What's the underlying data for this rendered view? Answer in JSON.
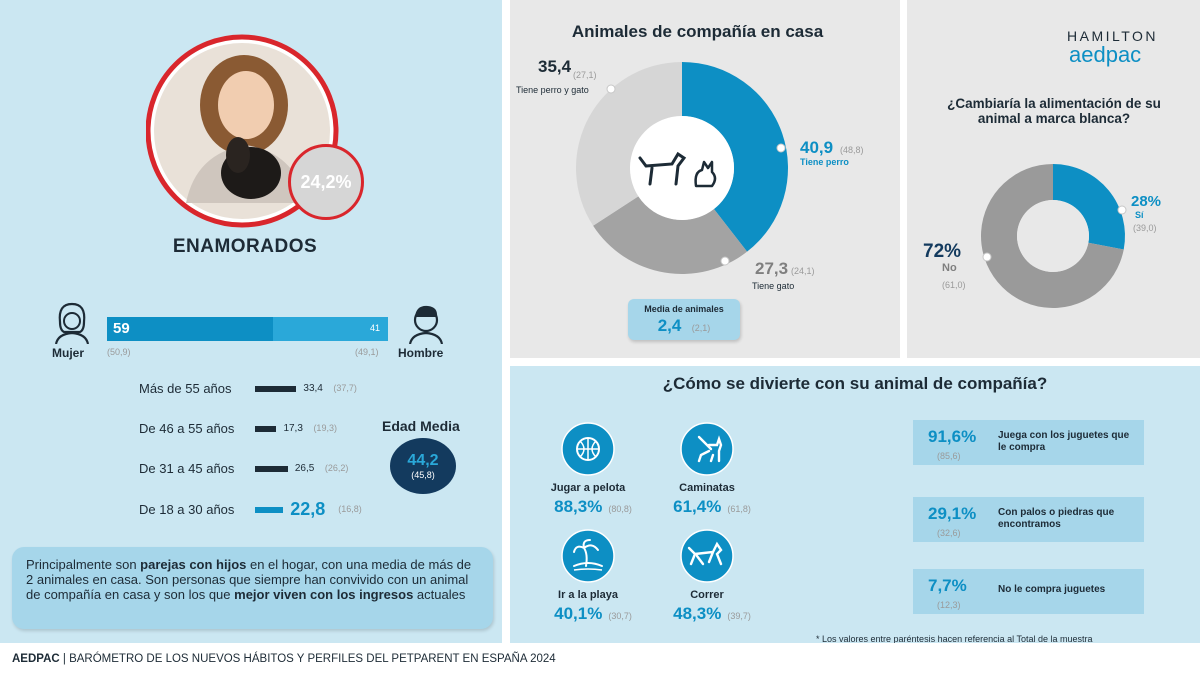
{
  "colors": {
    "blue": "#0d8fc4",
    "light_blue": "#2aa8d9",
    "dark": "#1d2b36",
    "navy": "#133a5e",
    "gray": "#9a9a9a",
    "mid_gray": "#a3a3a3",
    "light_gray": "#d6d6d6",
    "panel_blue": "#cbe7f2",
    "panel_gray": "#e8e8e8",
    "red": "#d9262c"
  },
  "profile": {
    "name": "ENAMORADOS",
    "share": "24,2%"
  },
  "gender": {
    "female_label": "Mujer",
    "male_label": "Hombre",
    "female_value": "59",
    "male_value": "41",
    "female_total": "(50,9)",
    "male_total": "(49,1)"
  },
  "age": {
    "title": "Edad Media",
    "mean": "44,2",
    "mean_total": "(45,8)",
    "groups": [
      {
        "label": "Más de 55 años",
        "value": 33.4,
        "value_text": "33,4",
        "total": "(37,7)"
      },
      {
        "label": "De 46 a 55 años",
        "value": 17.3,
        "value_text": "17,3",
        "total": "(19,3)"
      },
      {
        "label": "De 31 a 45 años",
        "value": 26.5,
        "value_text": "26,5",
        "total": "(26,2)"
      },
      {
        "label": "De 18 a 30 años",
        "value": 22.8,
        "value_text": "22,8",
        "total": "(16,8)"
      }
    ]
  },
  "summary": {
    "t1": "Principalmente son ",
    "b1": "parejas con hijos",
    "t2": " en el hogar, con una media de más de 2 animales en casa. Son personas que siempre han convivido con un animal de compañía en casa  y son los que ",
    "b2": "mejor viven con los ingresos",
    "t3": " actuales"
  },
  "pets": {
    "title": "Animales de compañía en casa",
    "avg_label": "Media de animales",
    "avg_value": "2,4",
    "avg_total": "(2,1)"
  },
  "brand": {
    "logo_top": "HAMILTON",
    "logo_bottom": "aedpac",
    "question": "¿Cambiaría la alimentación de su animal a marca blanca?"
  },
  "fun": {
    "title": "¿Cómo se divierte con su animal de compañía?",
    "activities": [
      {
        "label": "Jugar a pelota",
        "value": "88,3%",
        "total": "(80,8)",
        "icon": "ball-icon"
      },
      {
        "label": "Caminatas",
        "value": "61,4%",
        "total": "(61,8)",
        "icon": "dog-walk-icon"
      },
      {
        "label": "Ir a la playa",
        "value": "40,1%",
        "total": "(30,7)",
        "icon": "beach-icon"
      },
      {
        "label": "Correr",
        "value": "48,3%",
        "total": "(39,7)",
        "icon": "dog-run-icon"
      }
    ],
    "toys": [
      {
        "value": "91,6%",
        "total": "(85,6)",
        "label": "Juega con los juguetes que le compra"
      },
      {
        "value": "29,1%",
        "total": "(32,6)",
        "label": "Con palos o piedras que encontramos"
      },
      {
        "value": "7,7%",
        "total": "(12,3)",
        "label": "No le compra juguetes"
      }
    ],
    "footnote": "* Los valores entre paréntesis hacen referencia al Total de la muestra"
  },
  "footer": {
    "brand": "AEDPAC",
    "text": " | BARÓMETRO DE LOS NUEVOS HÁBITOS Y PERFILES DEL PETPARENT EN ESPAÑA 2024"
  },
  "chart_data": [
    {
      "type": "pie",
      "title": "Animales de compañía en casa",
      "categories": [
        "Tiene perro",
        "Tiene gato",
        "Tiene perro y gato"
      ],
      "values": [
        40.9,
        27.3,
        35.4
      ],
      "value_text": [
        "40,9",
        "27,3",
        "35,4"
      ],
      "totals": [
        "(48,8)",
        "(24,1)",
        "(27,1)"
      ],
      "colors": [
        "#0d8fc4",
        "#a3a3a3",
        "#d6d6d6"
      ]
    },
    {
      "type": "pie",
      "title": "¿Cambiaría la alimentación de su animal a marca blanca?",
      "categories": [
        "Sí",
        "No"
      ],
      "values": [
        28,
        72
      ],
      "value_text": [
        "28%",
        "72%"
      ],
      "totals": [
        "(39,0)",
        "(61,0)"
      ],
      "colors": [
        "#0d8fc4",
        "#9a9a9a"
      ]
    },
    {
      "type": "bar",
      "title": "",
      "categories": [
        "Mujer",
        "Hombre"
      ],
      "values": [
        59,
        41
      ],
      "totals": [
        "(50,9)",
        "(49,1)"
      ]
    },
    {
      "type": "bar",
      "title": "",
      "categories": [
        "Más de 55 años",
        "De 46 a 55 años",
        "De 31 a 45 años",
        "De 18 a 30 años"
      ],
      "values": [
        33.4,
        17.3,
        26.5,
        22.8
      ],
      "totals": [
        "(37,7)",
        "(19,3)",
        "(26,2)",
        "(16,8)"
      ]
    }
  ]
}
